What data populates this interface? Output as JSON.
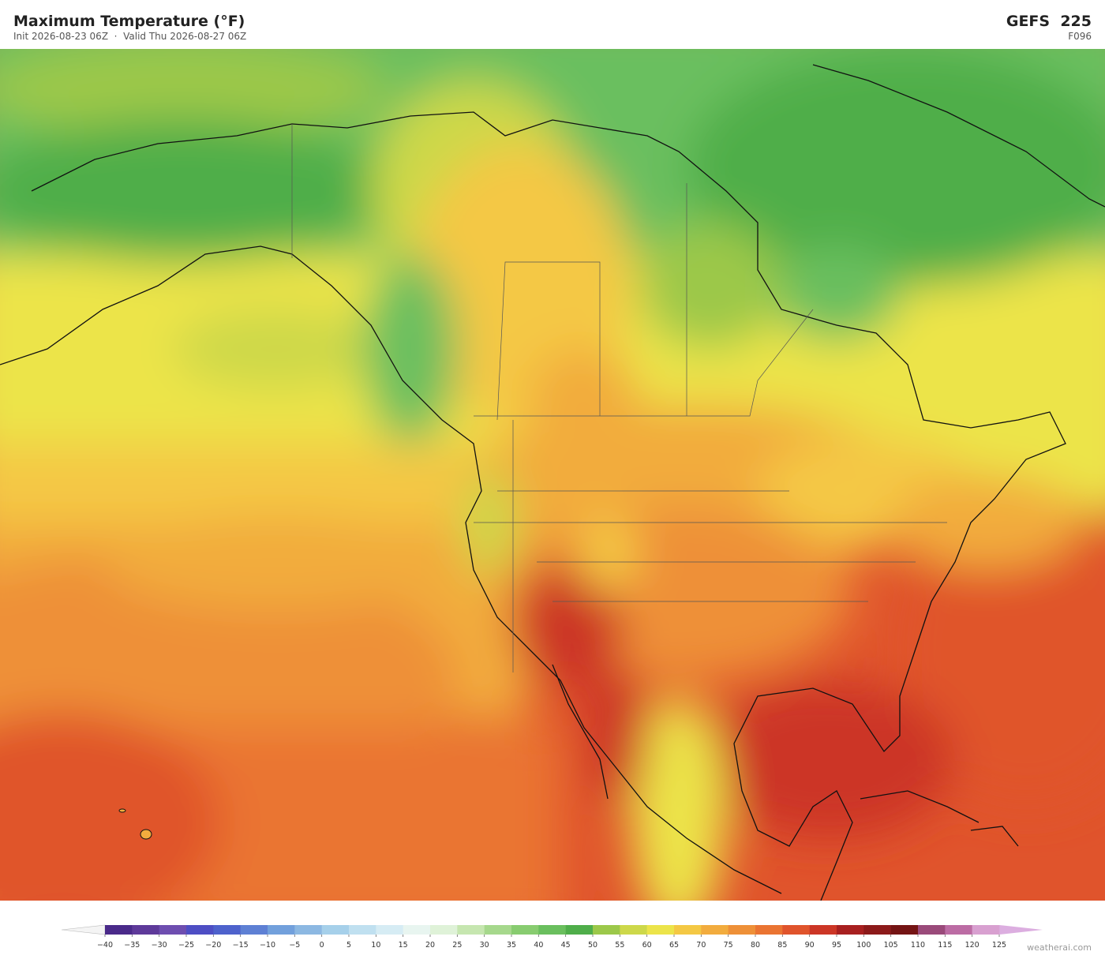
{
  "header": {
    "title": "Maximum Temperature  (°F)",
    "init": "Init 2026-08-23 06Z",
    "valid": "Valid Thu 2026-08-27 06Z",
    "model": "GEFS  225",
    "forecast_hour": "F096"
  },
  "colorbar": {
    "ticks": [
      {
        "value": -40,
        "label": "−40"
      },
      {
        "value": -35,
        "label": "−35"
      },
      {
        "value": -30,
        "label": "−30"
      },
      {
        "value": -25,
        "label": "−25"
      },
      {
        "value": -20,
        "label": "−20"
      },
      {
        "value": -15,
        "label": "−15"
      },
      {
        "value": -10,
        "label": "−10"
      },
      {
        "value": -5,
        "label": "−5"
      },
      0,
      5,
      10,
      15,
      20,
      25,
      30,
      35,
      40,
      45,
      50,
      55,
      60,
      65,
      70,
      75,
      80,
      85,
      90,
      95,
      100,
      105,
      110,
      115,
      120,
      125
    ],
    "colors": [
      "#4a2a8a",
      "#5e3a9a",
      "#6e4eb0",
      "#4e4ec4",
      "#4e62cc",
      "#5e80d4",
      "#72a0dc",
      "#8cb8e2",
      "#a6d0ea",
      "#c0e0f0",
      "#d6ecf4",
      "#e8f5f0",
      "#dff2d8",
      "#c6e6b0",
      "#a6d88c",
      "#88cc70",
      "#6abf5e",
      "#4fae4a",
      "#9cc84a",
      "#cdd84a",
      "#ece44a",
      "#f4c844",
      "#f2ac3e",
      "#ee9038",
      "#ea7432",
      "#e0542c",
      "#cc3626",
      "#a82020",
      "#8c1a1a",
      "#741414",
      "#9a4a7a",
      "#bc6ca4",
      "#d8a0d0"
    ],
    "under_color": "#f4f4f4",
    "over_color": "#dcaee0"
  },
  "footer": {
    "credit": "weatherai.com"
  }
}
